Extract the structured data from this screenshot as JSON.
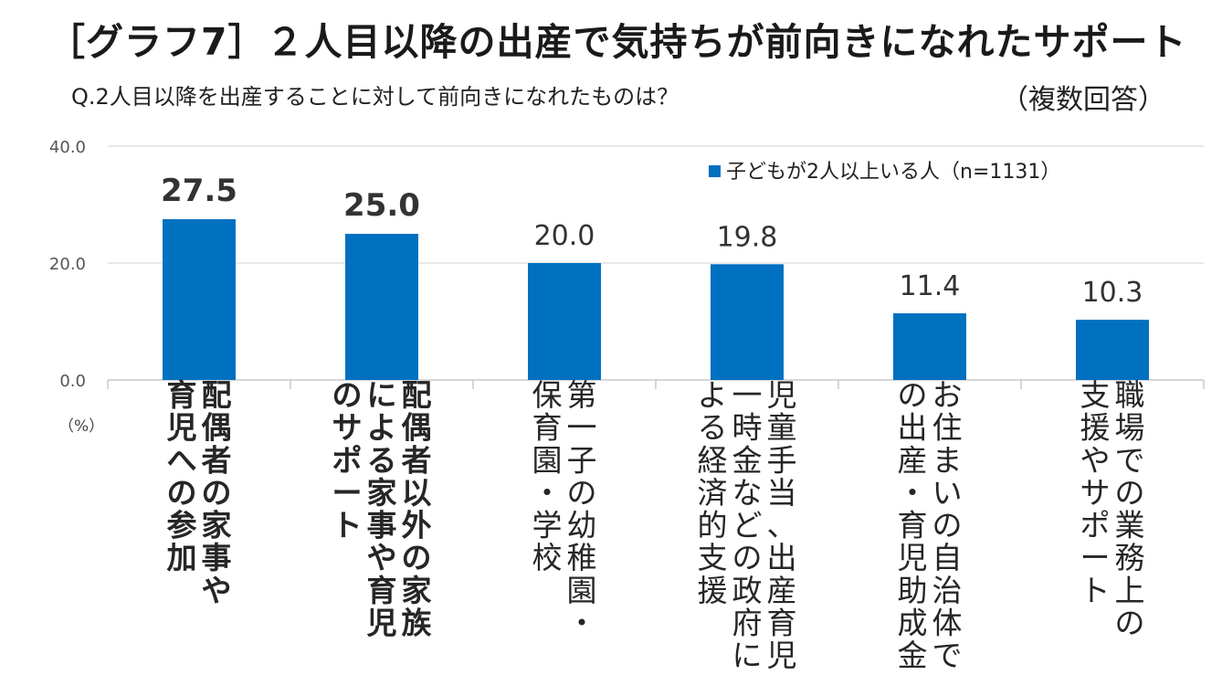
{
  "title": "［グラフ7］２人目以降の出産で気持ちが前向きになれたサポート",
  "subtitle": "Q.2人目以降を出産することに対して前向きになれたものは？",
  "note": "（複数回答）",
  "unit_label": "（%）",
  "chart_data": {
    "type": "bar",
    "title": "［グラフ7］２人目以降の出産で気持ちが前向きになれたサポート",
    "subtitle": "Q.2人目以降を出産することに対して前向きになれたものは？",
    "categories": [
      "配偶者の家事や育児への参加",
      "配偶者以外の家族による家事や育児のサポート",
      "第一子の幼稚園・保育園・学校",
      "児童手当、出産育児一時金などの政府による経済的支援",
      "お住まいの自治体での出産・育児助成金",
      "職場での業務上の支援やサポート"
    ],
    "category_lines": [
      [
        "配偶者の家事や",
        "育児への参加"
      ],
      [
        "配偶者以外の家族",
        "による家事や育児",
        "のサポート"
      ],
      [
        "第一子の幼稚園・",
        "保育園・学校"
      ],
      [
        "児童手当、出産育児",
        "一時金などの政府に",
        "よる経済的支援"
      ],
      [
        "お住まいの自治体で",
        "の出産・育児助成金"
      ],
      [
        "職場での業務上の",
        "支援やサポート"
      ]
    ],
    "series": [
      {
        "name": "子どもが2人以上いる人（n=1131）",
        "values": [
          27.5,
          25.0,
          20.0,
          19.8,
          11.4,
          10.3
        ]
      }
    ],
    "data_labels": [
      "27.5",
      "25.0",
      "20.0",
      "19.8",
      "11.4",
      "10.3"
    ],
    "data_label_bold": [
      true,
      true,
      false,
      false,
      false,
      false
    ],
    "category_label_bold": [
      true,
      true,
      false,
      false,
      false,
      false
    ],
    "y_ticks": [
      "0.0",
      "20.0",
      "40.0"
    ],
    "ylim": [
      0,
      40
    ],
    "ylabel": "（%）",
    "grid": true,
    "legend_position": "top-right",
    "colors": {
      "bar": "#0070C0",
      "grid": "#D9D9D9",
      "axis": "#BFBFBF"
    }
  }
}
